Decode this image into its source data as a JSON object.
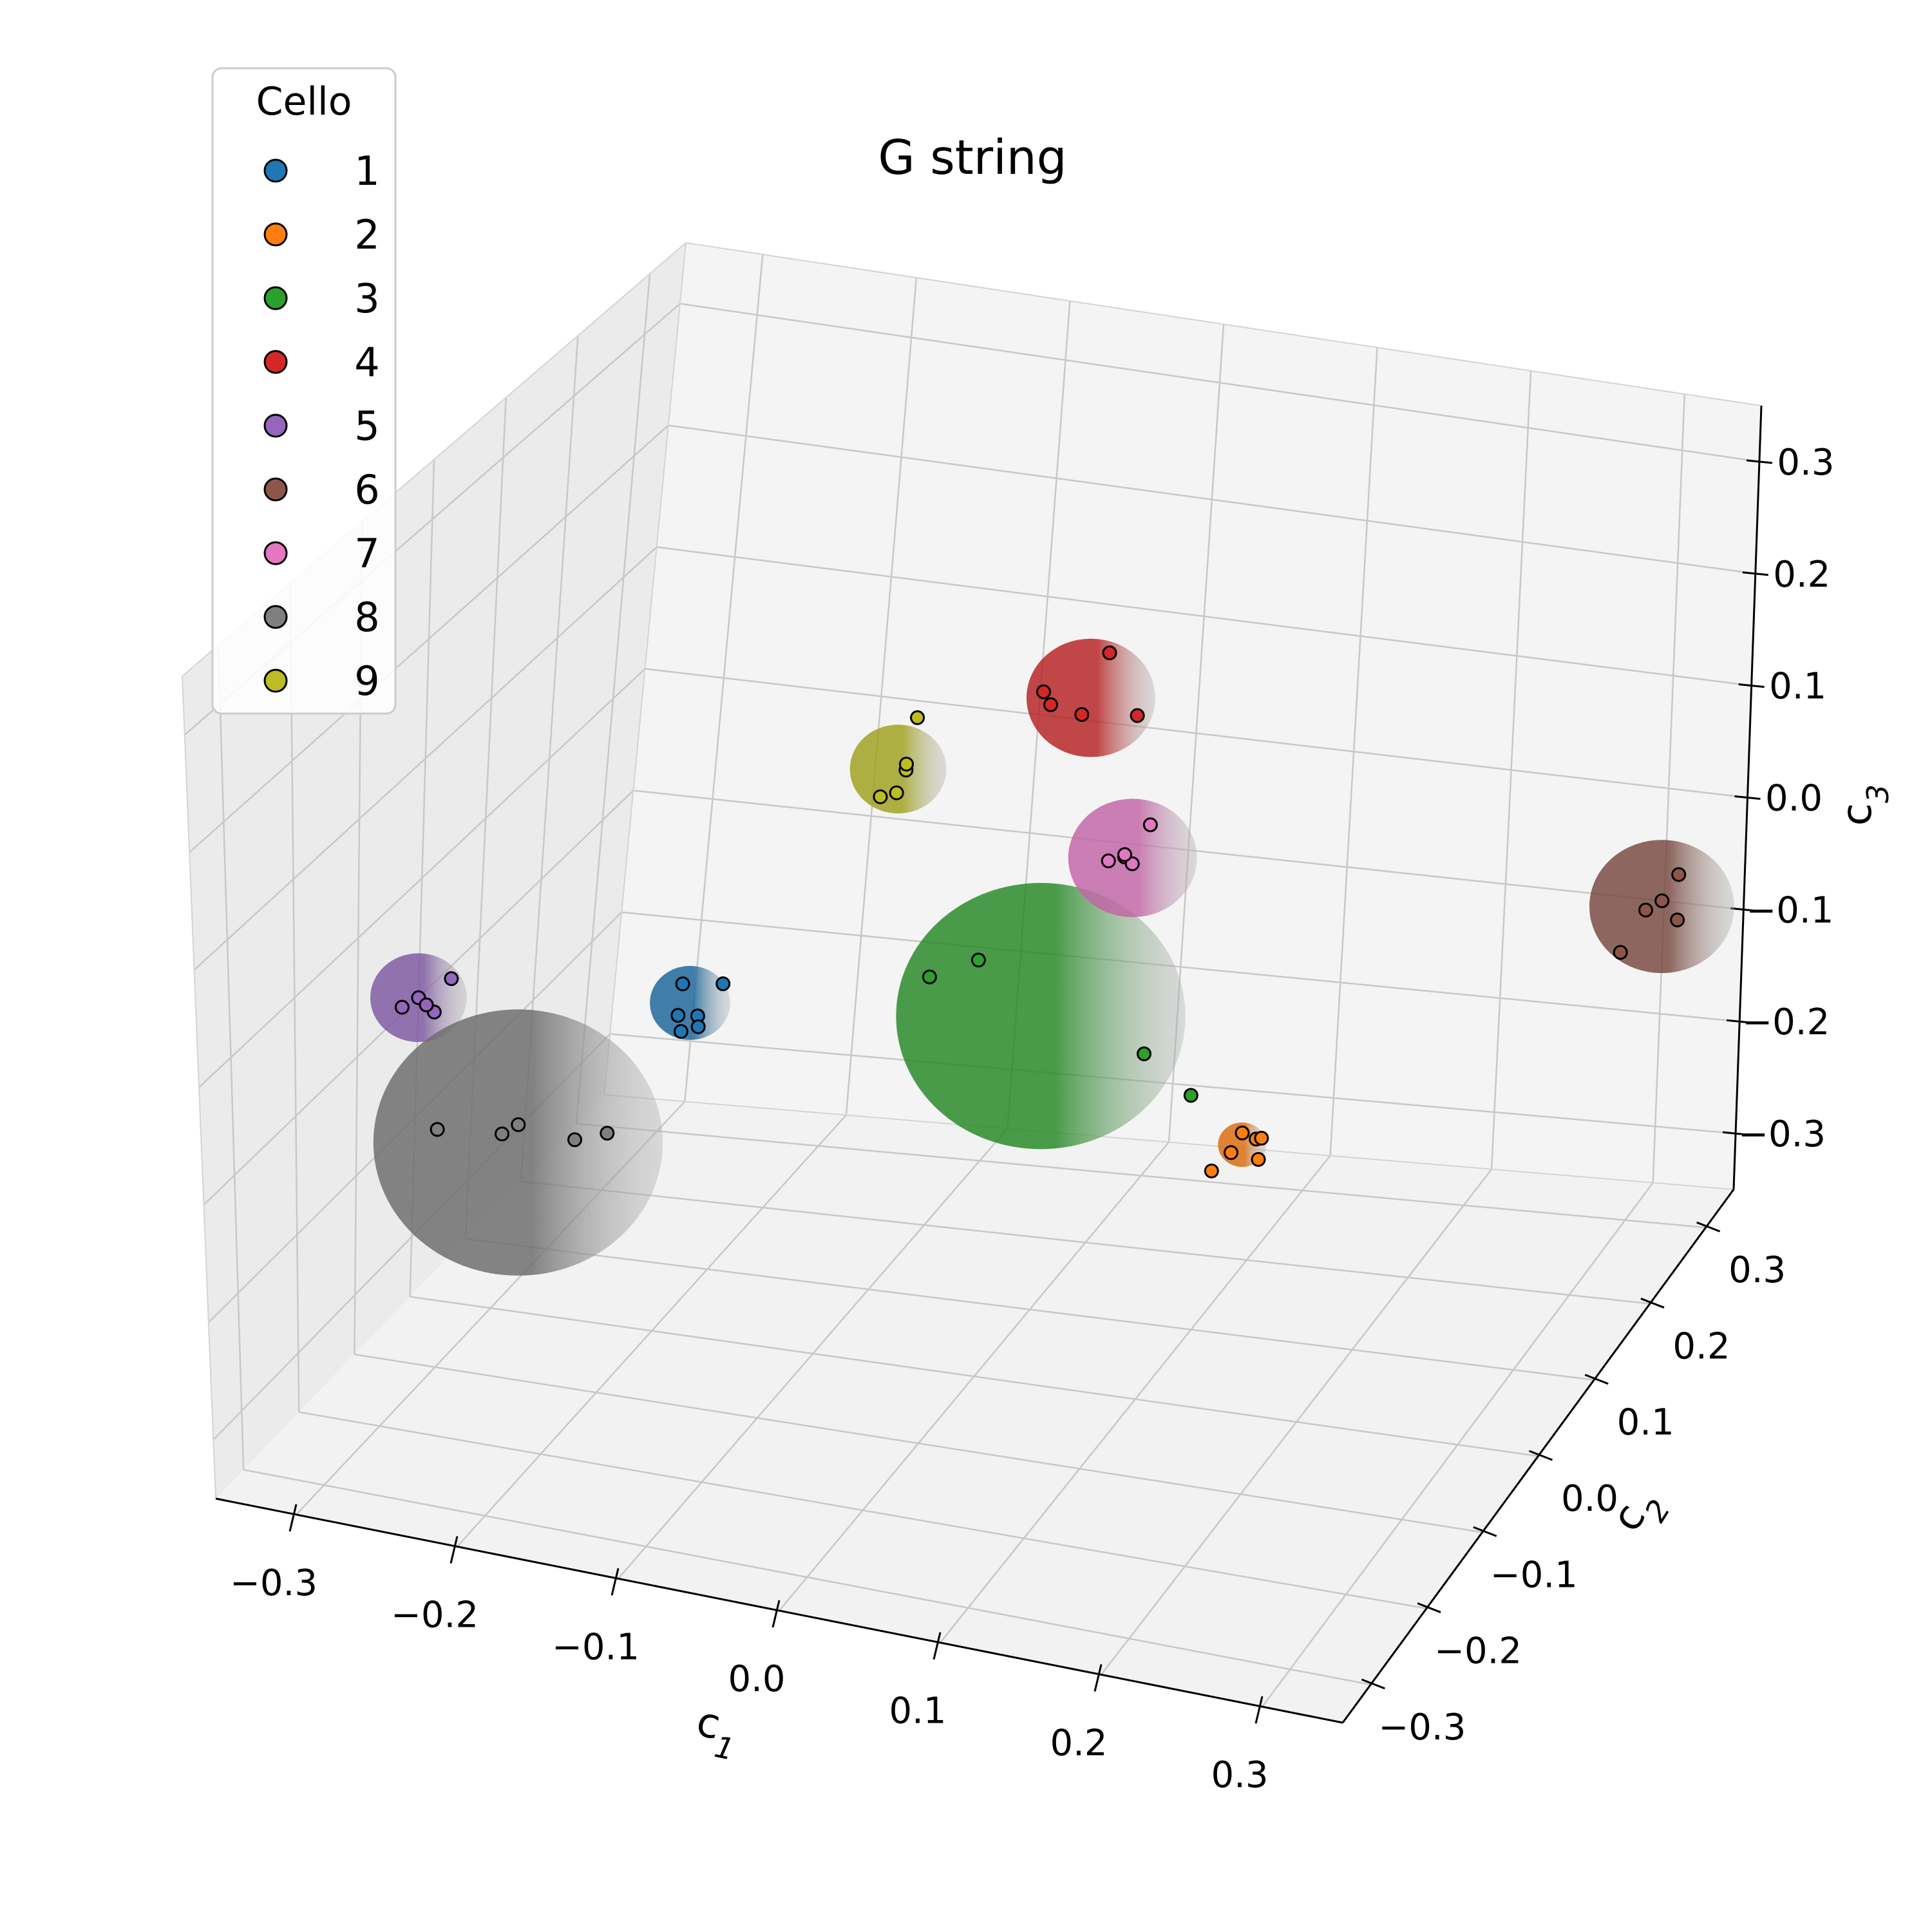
{
  "chart_data": {
    "type": "scatter",
    "projection": "3d",
    "title": "G string",
    "axes": {
      "x": {
        "label": "c1",
        "label_main": "c",
        "label_sub": "1",
        "ticks": [
          "−0.3",
          "−0.2",
          "−0.1",
          "0.0",
          "0.1",
          "0.2",
          "0.3"
        ],
        "lim": [
          -0.35,
          0.35
        ]
      },
      "y": {
        "label": "c2",
        "label_main": "c",
        "label_sub": "2",
        "ticks": [
          "−0.3",
          "−0.2",
          "−0.1",
          "0.0",
          "0.1",
          "0.2",
          "0.3"
        ],
        "lim": [
          -0.35,
          0.35
        ]
      },
      "z": {
        "label": "c3",
        "label_main": "c",
        "label_sub": "3",
        "ticks": [
          "−0.3",
          "−0.2",
          "−0.1",
          "0.0",
          "0.1",
          "0.2",
          "0.3"
        ],
        "lim": [
          -0.35,
          0.35
        ]
      }
    },
    "grid": true,
    "legend": {
      "title": "Cello",
      "placement": "top-left"
    },
    "series": [
      {
        "name": "1",
        "color": "#1f77b4",
        "center": [
          -0.2,
          0.05,
          -0.1
        ],
        "radius": 0.025,
        "points": [
          [
            -0.205,
            0.05,
            -0.085
          ],
          [
            -0.18,
            0.05,
            -0.08
          ],
          [
            -0.195,
            0.05,
            -0.11
          ],
          [
            -0.205,
            0.05,
            -0.125
          ],
          [
            -0.198,
            0.06,
            -0.125
          ],
          [
            -0.2,
            0.03,
            -0.1
          ]
        ]
      },
      {
        "name": "2",
        "color": "#ff7f0e",
        "center": [
          0.25,
          -0.25,
          0.05
        ],
        "radius": 0.015,
        "points": [
          [
            0.25,
            -0.25,
            0.06
          ],
          [
            0.255,
            -0.24,
            0.05
          ],
          [
            0.26,
            -0.25,
            0.04
          ],
          [
            0.245,
            -0.255,
            0.045
          ],
          [
            0.235,
            -0.26,
            0.03
          ],
          [
            0.26,
            -0.245,
            0.055
          ]
        ]
      },
      {
        "name": "3",
        "color": "#2ca02c",
        "center": [
          0.0,
          0.1,
          -0.1
        ],
        "radius": 0.09,
        "points": [
          [
            -0.07,
            0.1,
            -0.08
          ],
          [
            -0.04,
            0.1,
            -0.06
          ],
          [
            0.065,
            0.1,
            -0.12
          ],
          [
            0.095,
            0.1,
            -0.15
          ]
        ]
      },
      {
        "name": "4",
        "color": "#d62728",
        "center": [
          -0.05,
          0.3,
          0.05
        ],
        "radius": 0.04,
        "points": [
          [
            -0.04,
            0.3,
            0.09
          ],
          [
            -0.08,
            0.3,
            0.05
          ],
          [
            -0.075,
            0.3,
            0.04
          ],
          [
            -0.055,
            0.3,
            0.035
          ],
          [
            -0.02,
            0.3,
            0.04
          ]
        ]
      },
      {
        "name": "5",
        "color": "#9467bd",
        "center": [
          -0.35,
          0.0,
          -0.1
        ],
        "radius": 0.03,
        "points": [
          [
            -0.33,
            0.0,
            -0.08
          ],
          [
            -0.35,
            0.0,
            -0.1
          ],
          [
            -0.34,
            0.0,
            -0.11
          ],
          [
            -0.36,
            0.0,
            -0.11
          ],
          [
            -0.345,
            0.0,
            -0.105
          ]
        ]
      },
      {
        "name": "6",
        "color": "#8c564b",
        "center": [
          0.35,
          0.2,
          0.0
        ],
        "radius": 0.045,
        "points": [
          [
            0.36,
            0.2,
            0.03
          ],
          [
            0.35,
            0.2,
            0.005
          ],
          [
            0.34,
            0.2,
            -0.005
          ],
          [
            0.36,
            0.2,
            -0.01
          ],
          [
            0.325,
            0.2,
            -0.045
          ]
        ]
      },
      {
        "name": "7",
        "color": "#e377c2",
        "center": [
          0.0,
          0.25,
          -0.05
        ],
        "radius": 0.04,
        "points": [
          [
            0.01,
            0.25,
            -0.02
          ],
          [
            -0.005,
            0.25,
            -0.05
          ],
          [
            -0.015,
            0.25,
            -0.055
          ],
          [
            0.0,
            0.25,
            -0.055
          ],
          [
            -0.005,
            0.25,
            -0.048
          ]
        ]
      },
      {
        "name": "8",
        "color": "#7f7f7f",
        "center": [
          -0.25,
          -0.1,
          -0.15
        ],
        "radius": 0.09,
        "points": [
          [
            -0.3,
            -0.1,
            -0.15
          ],
          [
            -0.26,
            -0.1,
            -0.145
          ],
          [
            -0.25,
            -0.1,
            -0.135
          ],
          [
            -0.215,
            -0.1,
            -0.14
          ],
          [
            -0.195,
            -0.1,
            -0.13
          ]
        ]
      },
      {
        "name": "9",
        "color": "#bcbd22",
        "center": [
          -0.15,
          0.25,
          0.0
        ],
        "radius": 0.03,
        "points": [
          [
            -0.14,
            0.25,
            0.045
          ],
          [
            -0.145,
            0.25,
            0.0
          ],
          [
            -0.145,
            0.25,
            0.005
          ],
          [
            -0.15,
            0.25,
            -0.02
          ],
          [
            -0.16,
            0.25,
            -0.025
          ]
        ]
      }
    ]
  }
}
